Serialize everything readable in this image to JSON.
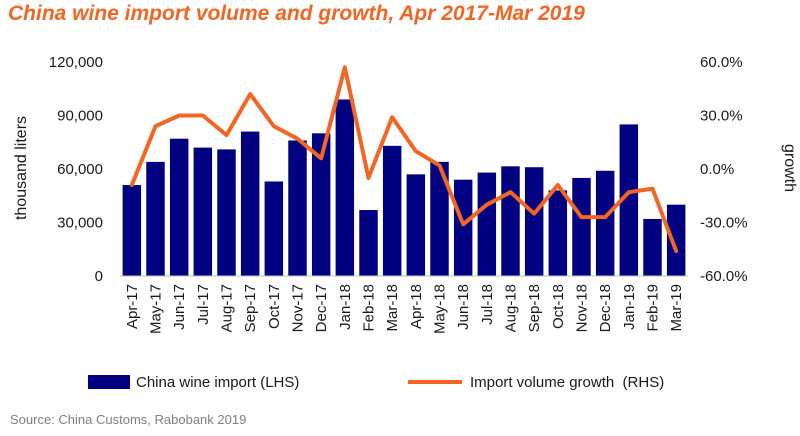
{
  "chart_data": {
    "type": "bar",
    "title": "China wine import volume and growth, Apr 2017-Mar 2019",
    "categories": [
      "Apr-17",
      "May-17",
      "Jun-17",
      "Jul-17",
      "Aug-17",
      "Sep-17",
      "Oct-17",
      "Nov-17",
      "Dec-17",
      "Jan-18",
      "Feb-18",
      "Mar-18",
      "Apr-18",
      "May-18",
      "Jun-18",
      "Jul-18",
      "Aug-18",
      "Sep-18",
      "Oct-18",
      "Nov-18",
      "Dec-18",
      "Jan-19",
      "Feb-19",
      "Mar-19"
    ],
    "series": [
      {
        "name": "China wine import (LHS)",
        "type": "bar",
        "axis": "left",
        "color": "#000080",
        "values": [
          51000,
          64000,
          77000,
          72000,
          71000,
          81000,
          53000,
          76000,
          80000,
          99000,
          37000,
          73000,
          57000,
          64000,
          54000,
          58000,
          61500,
          61000,
          48000,
          55000,
          59000,
          85000,
          32000,
          40000
        ]
      },
      {
        "name": "Import volume growth  (RHS)",
        "type": "line",
        "axis": "right",
        "color": "#f26522",
        "values": [
          -0.09,
          0.24,
          0.3,
          0.3,
          0.19,
          0.42,
          0.24,
          0.17,
          0.06,
          0.57,
          -0.05,
          0.29,
          0.1,
          0.02,
          -0.31,
          -0.2,
          -0.13,
          -0.25,
          -0.09,
          -0.27,
          -0.27,
          -0.13,
          -0.11,
          -0.46
        ]
      }
    ],
    "ylabel": "thousand liters",
    "y2label": "growth",
    "ylim": [
      0,
      120000
    ],
    "y2lim": [
      -0.6,
      0.6
    ],
    "yticks": [
      "0",
      "30,000",
      "60,000",
      "90,000",
      "120,000"
    ],
    "y2ticks": [
      "-60.0%",
      "-30.0%",
      "0.0%",
      "30.0%",
      "60.0%"
    ],
    "grid": false,
    "legend_position": "bottom"
  },
  "source": "Source: China Customs, Rabobank 2019"
}
